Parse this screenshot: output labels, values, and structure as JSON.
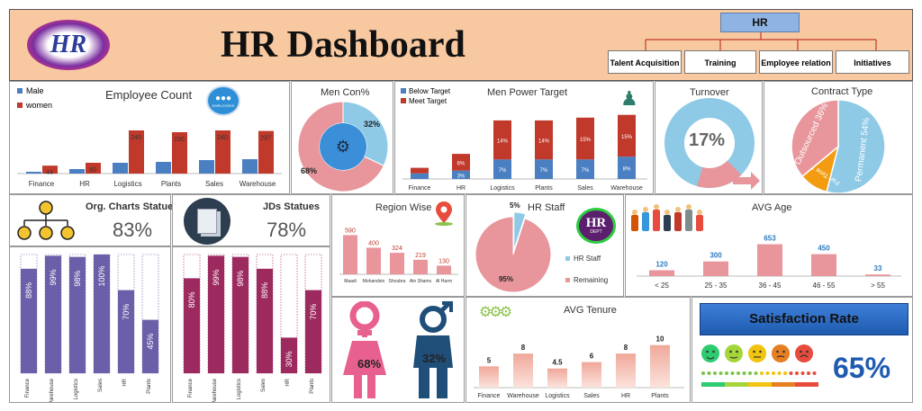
{
  "header": {
    "logo_text": "HR",
    "title": "HR Dashboard",
    "org": {
      "root": "HR",
      "children": [
        "Talent Acquisition",
        "Training",
        "Employee relation",
        "Initiatives"
      ]
    }
  },
  "employee_count": {
    "title": "Employee Count",
    "icon_label": "EMPLOYEES",
    "chart_data": {
      "type": "bar",
      "title": "Employee Count",
      "categories": [
        "Finance",
        "HR",
        "Logistics",
        "Plants",
        "Sales",
        "Warehouse"
      ],
      "series": [
        {
          "name": "Male",
          "values": [
            10,
            25,
            60,
            65,
            75,
            80
          ],
          "color": "#4a7fc1"
        },
        {
          "name": "women",
          "values": [
            44,
            60,
            240,
            230,
            240,
            237
          ],
          "color": "#c0392b"
        }
      ],
      "data_labels": [
        "44",
        "60",
        "240",
        "230",
        "240",
        "237"
      ],
      "legend": "top-left"
    }
  },
  "men_con": {
    "title": "Men Con%",
    "chart_data": {
      "type": "pie",
      "values": [
        32,
        68
      ],
      "labels": [
        "32%",
        "68%"
      ],
      "colors": [
        "#8ecae6",
        "#e8969b"
      ]
    }
  },
  "men_power_target": {
    "title": "Men Power Target",
    "chart_data": {
      "type": "bar",
      "title": "Men Power Target",
      "categories": [
        "Finance",
        "HR",
        "Logistics",
        "Plants",
        "Sales",
        "Warehouse"
      ],
      "series": [
        {
          "name": "Below Target",
          "values": [
            2,
            3,
            7,
            7,
            7,
            8
          ],
          "labels": [
            "",
            "3%",
            "7%",
            "7%",
            "7%",
            "8%"
          ],
          "color": "#4a7fc1"
        },
        {
          "name": "Meet Target",
          "values": [
            2,
            6,
            14,
            14,
            15,
            15
          ],
          "labels": [
            "",
            "6%",
            "14%",
            "14%",
            "15%",
            "15%"
          ],
          "color": "#c0392b"
        }
      ],
      "legend": "top-left"
    }
  },
  "turnover": {
    "title": "Turnover",
    "value": "17%",
    "pct": 17
  },
  "contract_type": {
    "title": "Contract Type",
    "chart_data": {
      "type": "pie",
      "slices": [
        {
          "name": "Permanent",
          "value": 54,
          "label": "Permanent 54%",
          "color": "#8ecae6"
        },
        {
          "name": "Part Time",
          "value": 10,
          "label": "Part Time 10%",
          "color": "#f39c12"
        },
        {
          "name": "Outsourced",
          "value": 36,
          "label": "Outsourced 36%",
          "color": "#e8969b"
        }
      ]
    }
  },
  "org_charts": {
    "title": "Org. Charts Statues",
    "value": "83%"
  },
  "jds": {
    "title": "JDs Statues",
    "value": "78%"
  },
  "org_bars": {
    "chart_data": {
      "type": "bar",
      "categories": [
        "Finance",
        "Warehouse",
        "Logistics",
        "Sales",
        "HR",
        "Plants"
      ],
      "values": [
        88,
        99,
        98,
        100,
        70,
        45
      ],
      "labels": [
        "88%",
        "99%",
        "98%",
        "100%",
        "70%",
        "45%"
      ],
      "color": "#6a5fa8"
    }
  },
  "jd_bars": {
    "chart_data": {
      "type": "bar",
      "categories": [
        "Finance",
        "Warehouse",
        "Logistics",
        "Sales",
        "HR",
        "Plants"
      ],
      "values": [
        80,
        99,
        98,
        88,
        30,
        70
      ],
      "labels": [
        "80%",
        "99%",
        "98%",
        "88%",
        "30%",
        "70%"
      ],
      "color": "#9c2a5f"
    }
  },
  "region": {
    "title": "Region Wise",
    "chart_data": {
      "type": "bar",
      "categories": [
        "Maadi",
        "Mohandsin",
        "Shoubra",
        "Ain Shams",
        "Al Harm"
      ],
      "values": [
        590,
        400,
        324,
        219,
        130
      ],
      "color": "#e8969b"
    }
  },
  "hr_staff": {
    "title": "HR Staff",
    "badge_main": "HR",
    "badge_sub": "DEPT",
    "chart_data": {
      "type": "pie",
      "slices": [
        {
          "name": "HR Staff",
          "value": 5,
          "label": "5%",
          "color": "#8ecae6"
        },
        {
          "name": "Remaining",
          "value": 95,
          "label": "95%",
          "color": "#e8969b"
        }
      ]
    }
  },
  "avg_age": {
    "title": "AVG Age",
    "chart_data": {
      "type": "bar",
      "categories": [
        "< 25",
        "25 - 35",
        "36 - 45",
        "46 - 55",
        "> 55"
      ],
      "values": [
        120,
        300,
        653,
        450,
        33
      ],
      "color": "#e8969b"
    }
  },
  "gender": {
    "women": "68%",
    "men": "32%"
  },
  "avg_tenure": {
    "title": "AVG Tenure",
    "chart_data": {
      "type": "bar",
      "categories": [
        "Finance",
        "Warehouse",
        "Logistics",
        "Sales",
        "HR",
        "Plants"
      ],
      "values": [
        5,
        8,
        4.5,
        6,
        8,
        10
      ],
      "labels": [
        "5",
        "8",
        "4.5",
        "6",
        "8",
        "10"
      ],
      "color": "#f0a89a"
    }
  },
  "satisfaction": {
    "title": "Satisfaction Rate",
    "value": "65%",
    "faces": [
      "#2ecc71",
      "#a4d63a",
      "#f1c40f",
      "#e67e22",
      "#e74c3c"
    ]
  }
}
